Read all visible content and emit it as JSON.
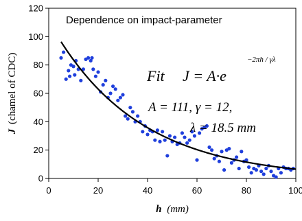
{
  "chart_data": {
    "type": "scatter",
    "title": "Dependence on impact-parameter",
    "xlabel_var": "h",
    "xlabel_unit": "(mm)",
    "ylabel_var": "J",
    "ylabel_unit": "(chamel of CDC)",
    "xlim": [
      0,
      100
    ],
    "ylim": [
      0,
      120
    ],
    "x_ticks": [
      "0",
      "20",
      "40",
      "60",
      "80",
      "100"
    ],
    "y_ticks": [
      "0",
      "20",
      "40",
      "60",
      "80",
      "100",
      "120"
    ],
    "grid": false,
    "legend": "none",
    "colors": {
      "points": "#1f3fdc",
      "fit": "#000000"
    },
    "annotations": {
      "fit_word": "Fit",
      "fit_equation": "J = A·e",
      "exponent": "−2πh / γλ",
      "params_line1": "A = 111,   γ = 12,",
      "params_line2": "λ = 18.5 mm"
    },
    "fit": {
      "A": 111,
      "gamma": 12,
      "lambda": 18.5,
      "x_range": [
        5,
        100
      ]
    },
    "points": [
      [
        5,
        85
      ],
      [
        6,
        89
      ],
      [
        7,
        70
      ],
      [
        8,
        76
      ],
      [
        8.5,
        72
      ],
      [
        9,
        80
      ],
      [
        10,
        79
      ],
      [
        10.5,
        73
      ],
      [
        11,
        83
      ],
      [
        12,
        77
      ],
      [
        13,
        69
      ],
      [
        14,
        77
      ],
      [
        15,
        84
      ],
      [
        16,
        85
      ],
      [
        17,
        83
      ],
      [
        17.5,
        85
      ],
      [
        18,
        77
      ],
      [
        19,
        72
      ],
      [
        20,
        75
      ],
      [
        21,
        61
      ],
      [
        22,
        66
      ],
      [
        23,
        69
      ],
      [
        24,
        57
      ],
      [
        25,
        60
      ],
      [
        26,
        65
      ],
      [
        27,
        63
      ],
      [
        28,
        55
      ],
      [
        29,
        57
      ],
      [
        30,
        59
      ],
      [
        31,
        44
      ],
      [
        32,
        42
      ],
      [
        33,
        50
      ],
      [
        34,
        47
      ],
      [
        35,
        40
      ],
      [
        36,
        44
      ],
      [
        37,
        40
      ],
      [
        38,
        33
      ],
      [
        39,
        37
      ],
      [
        40,
        31
      ],
      [
        41,
        34
      ],
      [
        42,
        33
      ],
      [
        43,
        27
      ],
      [
        44,
        34
      ],
      [
        45,
        26
      ],
      [
        46,
        33
      ],
      [
        47,
        27
      ],
      [
        48,
        16
      ],
      [
        49,
        30
      ],
      [
        50,
        26
      ],
      [
        51,
        29
      ],
      [
        52,
        24
      ],
      [
        53,
        25
      ],
      [
        54,
        32
      ],
      [
        55,
        29
      ],
      [
        56,
        25
      ],
      [
        57,
        27
      ],
      [
        58,
        33
      ],
      [
        59,
        30
      ],
      [
        60,
        13
      ],
      [
        61,
        32
      ],
      [
        62,
        35
      ],
      [
        63,
        36
      ],
      [
        64,
        37
      ],
      [
        65,
        22
      ],
      [
        66,
        20
      ],
      [
        67,
        14
      ],
      [
        68,
        16
      ],
      [
        69,
        12
      ],
      [
        70,
        19
      ],
      [
        71,
        6
      ],
      [
        72,
        20
      ],
      [
        73,
        21
      ],
      [
        74,
        11
      ],
      [
        75,
        13
      ],
      [
        76,
        15
      ],
      [
        77,
        7
      ],
      [
        78,
        19
      ],
      [
        79,
        12
      ],
      [
        80,
        13
      ],
      [
        81,
        8
      ],
      [
        82,
        4
      ],
      [
        83,
        7
      ],
      [
        84,
        6
      ],
      [
        85,
        9
      ],
      [
        86,
        5
      ],
      [
        87,
        3
      ],
      [
        88,
        7
      ],
      [
        89,
        9
      ],
      [
        90,
        5
      ],
      [
        91,
        2
      ],
      [
        92,
        1
      ],
      [
        93,
        7
      ],
      [
        94,
        4
      ],
      [
        95,
        8
      ],
      [
        96,
        7
      ],
      [
        97,
        7
      ],
      [
        98,
        6
      ],
      [
        99,
        7
      ]
    ]
  }
}
